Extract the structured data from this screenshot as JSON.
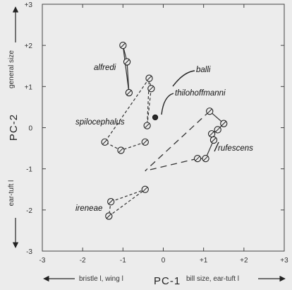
{
  "chart_data": {
    "type": "scatter",
    "xlabel": "PC-1",
    "ylabel": "PC-2",
    "x_low_label": "bristle l, wing l",
    "x_high_label": "bill size, ear-tuft l",
    "y_high_label": "general size",
    "y_low_label": "ear-tuft l",
    "xlim": [
      -3,
      3
    ],
    "ylim": [
      -3,
      3
    ],
    "xticks": [
      "-3",
      "-2",
      "-1",
      "0",
      "+1",
      "+2",
      "+3"
    ],
    "yticks": [
      "-3",
      "-2",
      "-1",
      "0",
      "+1",
      "+2",
      "+3"
    ],
    "series": [
      {
        "name": "alfredi",
        "points": [
          [
            -1.0,
            2.0
          ],
          [
            -0.9,
            1.6
          ],
          [
            -0.85,
            0.85
          ]
        ],
        "path": [
          [
            -1.0,
            2.0
          ],
          [
            -0.9,
            1.6
          ],
          [
            -0.85,
            0.85
          ],
          [
            -1.0,
            2.0
          ]
        ],
        "path_style": "solid"
      },
      {
        "name": "balli",
        "points": [
          [
            -0.35,
            1.2
          ],
          [
            -0.3,
            0.95
          ],
          [
            -0.4,
            0.05
          ]
        ],
        "path": [
          [
            -0.35,
            1.2
          ],
          [
            -0.3,
            0.95
          ],
          [
            -0.4,
            0.05
          ],
          [
            -0.35,
            1.2
          ]
        ],
        "path_style": "dashed"
      },
      {
        "name": "spilocephalus",
        "points": [
          [
            -1.45,
            -0.35
          ],
          [
            -1.05,
            -0.55
          ],
          [
            -0.45,
            -0.35
          ]
        ],
        "path": [
          [
            -0.45,
            -0.35
          ],
          [
            -1.05,
            -0.55
          ],
          [
            -1.45,
            -0.35
          ],
          [
            -0.35,
            1.2
          ]
        ],
        "path_style": "dashed"
      },
      {
        "name": "thilohoffmanni",
        "points": [
          [
            -0.2,
            0.25
          ]
        ],
        "path": [],
        "path_style": "none",
        "marker": "filled"
      },
      {
        "name": "rufescens",
        "points": [
          [
            1.15,
            0.4
          ],
          [
            1.5,
            0.1
          ],
          [
            1.35,
            -0.05
          ],
          [
            1.2,
            -0.15
          ],
          [
            1.25,
            -0.3
          ],
          [
            1.05,
            -0.75
          ],
          [
            0.85,
            -0.75
          ]
        ],
        "path": [
          [
            1.15,
            0.4
          ],
          [
            1.5,
            0.1
          ],
          [
            1.35,
            -0.05
          ],
          [
            1.2,
            -0.15
          ],
          [
            1.25,
            -0.3
          ],
          [
            1.05,
            -0.75
          ],
          [
            0.85,
            -0.75
          ]
        ],
        "path_style": "solid",
        "connectors": [
          {
            "from": [
              1.15,
              0.4
            ],
            "to": [
              -0.45,
              -1.05
            ]
          },
          {
            "from": [
              0.85,
              -0.75
            ],
            "to": [
              -0.45,
              -1.05
            ]
          }
        ]
      },
      {
        "name": "ireneae",
        "points": [
          [
            -1.3,
            -1.8
          ],
          [
            -1.35,
            -2.15
          ],
          [
            -0.45,
            -1.5
          ]
        ],
        "path": [
          [
            -1.3,
            -1.8
          ],
          [
            -0.45,
            -1.5
          ],
          [
            -1.35,
            -2.15
          ],
          [
            -1.3,
            -1.8
          ]
        ],
        "path_style": "dashed"
      }
    ]
  }
}
